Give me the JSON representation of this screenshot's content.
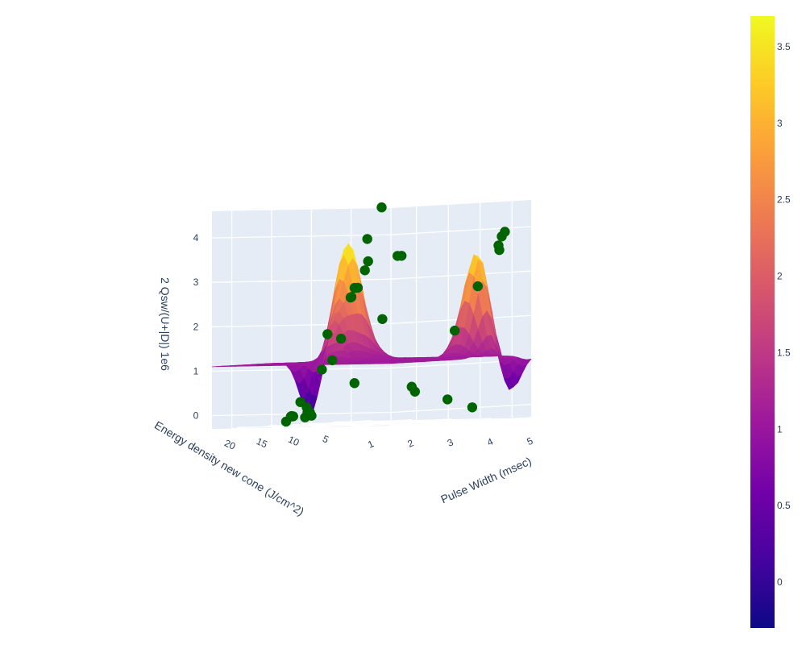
{
  "chart_data": {
    "type": "surface",
    "xaxis": {
      "title": "Pulse Width (msec)",
      "range": [
        0.5,
        5
      ],
      "ticks": [
        1,
        2,
        3,
        4,
        5
      ]
    },
    "yaxis": {
      "title": "Energy density new cone (J/cm^2)",
      "range": [
        2,
        24
      ],
      "ticks": [
        5,
        10,
        15,
        20
      ]
    },
    "zaxis": {
      "title": "2 Qsw/(U+|D|) 1e6",
      "range": [
        -0.3,
        4.6
      ],
      "ticks": [
        0,
        1,
        2,
        3,
        4
      ]
    },
    "colorbar": {
      "range": [
        -0.3,
        3.7
      ],
      "ticks": [
        0,
        0.5,
        1,
        1.5,
        2,
        2.5,
        3,
        3.5
      ],
      "colors": [
        "#0d0887",
        "#46039f",
        "#7201a8",
        "#9c179e",
        "#bd3786",
        "#d8576b",
        "#ed7953",
        "#fb9f3a",
        "#fdca26",
        "#f0f921"
      ]
    },
    "surface": {
      "base_level": 1.1,
      "peaks": [
        {
          "x": 1.2,
          "y": 7.0,
          "z": 3.6
        },
        {
          "x": 4.6,
          "y": 8.0,
          "z": 3.5
        },
        {
          "x": 0.7,
          "y": 5.5,
          "z": 2.0
        },
        {
          "x": 1.7,
          "y": 8.5,
          "z": 1.9
        }
      ],
      "troughs": [
        {
          "x": 0.6,
          "y": 9.0,
          "z": -0.2
        },
        {
          "x": 4.9,
          "y": 5.0,
          "z": 0.2
        }
      ]
    },
    "scatter": {
      "name": "",
      "color": "#006400",
      "points": [
        [
          1.4,
          3,
          4.5
        ],
        [
          1.2,
          4,
          3.8
        ],
        [
          1.3,
          4.5,
          3.3
        ],
        [
          1.3,
          5,
          3.1
        ],
        [
          1.8,
          3,
          3.4
        ],
        [
          1.9,
          3,
          3.4
        ],
        [
          0.8,
          3,
          2.7
        ],
        [
          0.8,
          3.5,
          2.7
        ],
        [
          0.8,
          4,
          2.5
        ],
        [
          1.1,
          6,
          2.5
        ],
        [
          1.9,
          6,
          2.0
        ],
        [
          1.0,
          9,
          1.7
        ],
        [
          4.5,
          3,
          3.9
        ],
        [
          4.5,
          3.5,
          3.8
        ],
        [
          4.5,
          4,
          3.6
        ],
        [
          4.6,
          4.5,
          3.5
        ],
        [
          4.3,
          6,
          2.7
        ],
        [
          3.4,
          4,
          1.7
        ],
        [
          0.7,
          8,
          0.9
        ],
        [
          0.8,
          12,
          0.2
        ],
        [
          0.9,
          14,
          -0.1
        ],
        [
          1.1,
          15,
          -0.1
        ],
        [
          1.2,
          16,
          -0.1
        ],
        [
          1.4,
          18,
          -0.2
        ],
        [
          1.4,
          14,
          -0.1
        ],
        [
          1.6,
          16,
          0.1
        ],
        [
          2.0,
          18,
          0.0
        ],
        [
          2.1,
          19,
          0.0
        ],
        [
          2.2,
          20,
          -0.1
        ],
        [
          4.0,
          14,
          0.4
        ],
        [
          4.5,
          12,
          0.2
        ],
        [
          4.8,
          10,
          0.0
        ],
        [
          0.8,
          7,
          1.1
        ],
        [
          1.5,
          10,
          1.6
        ],
        [
          2.0,
          11,
          0.6
        ],
        [
          3.6,
          12,
          0.5
        ]
      ]
    }
  }
}
